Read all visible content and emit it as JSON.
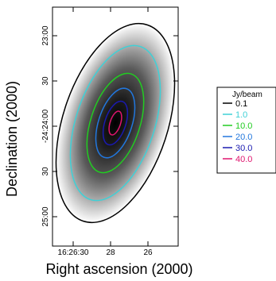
{
  "chart_data": {
    "type": "contour",
    "xlabel": "Right ascension (2000)",
    "ylabel": "Declination (2000)",
    "x_ticks": [
      {
        "label": "16:26:30",
        "position": 0.0
      },
      {
        "label": "28",
        "position": 0.5
      },
      {
        "label": "26",
        "position": 1.0
      }
    ],
    "y_ticks": [
      {
        "label": "23:00",
        "position": 0.0
      },
      {
        "label": "30",
        "position": 1.0
      },
      {
        "label": "-24:24:00",
        "position": 2.0
      },
      {
        "label": "30",
        "position": 3.0
      },
      {
        "label": "25:00",
        "position": 4.0
      }
    ],
    "legend": {
      "title": "Jy/beam",
      "placement": "right",
      "entries": [
        {
          "label": "0.1",
          "color": "#000000"
        },
        {
          "label": "1.0",
          "color": "#3fd0d6"
        },
        {
          "label": "10.0",
          "color": "#22cc22"
        },
        {
          "label": "20.0",
          "color": "#2277dd"
        },
        {
          "label": "30.0",
          "color": "#1a1ab0"
        },
        {
          "label": "40.0",
          "color": "#e0156f"
        }
      ]
    },
    "series": [
      {
        "level": 0.1,
        "color": "#000000",
        "rx": 1.0,
        "ry": 1.0
      },
      {
        "level": 1.0,
        "color": "#3fd0d6",
        "rx": 0.75,
        "ry": 0.78
      },
      {
        "level": 10.0,
        "color": "#22cc22",
        "rx": 0.47,
        "ry": 0.5
      },
      {
        "level": 20.0,
        "color": "#2277dd",
        "rx": 0.32,
        "ry": 0.35
      },
      {
        "level": 30.0,
        "color": "#1a1ab0",
        "rx": 0.2,
        "ry": 0.22
      },
      {
        "level": 40.0,
        "color": "#e0156f",
        "rx": 0.1,
        "ry": 0.12
      }
    ]
  }
}
